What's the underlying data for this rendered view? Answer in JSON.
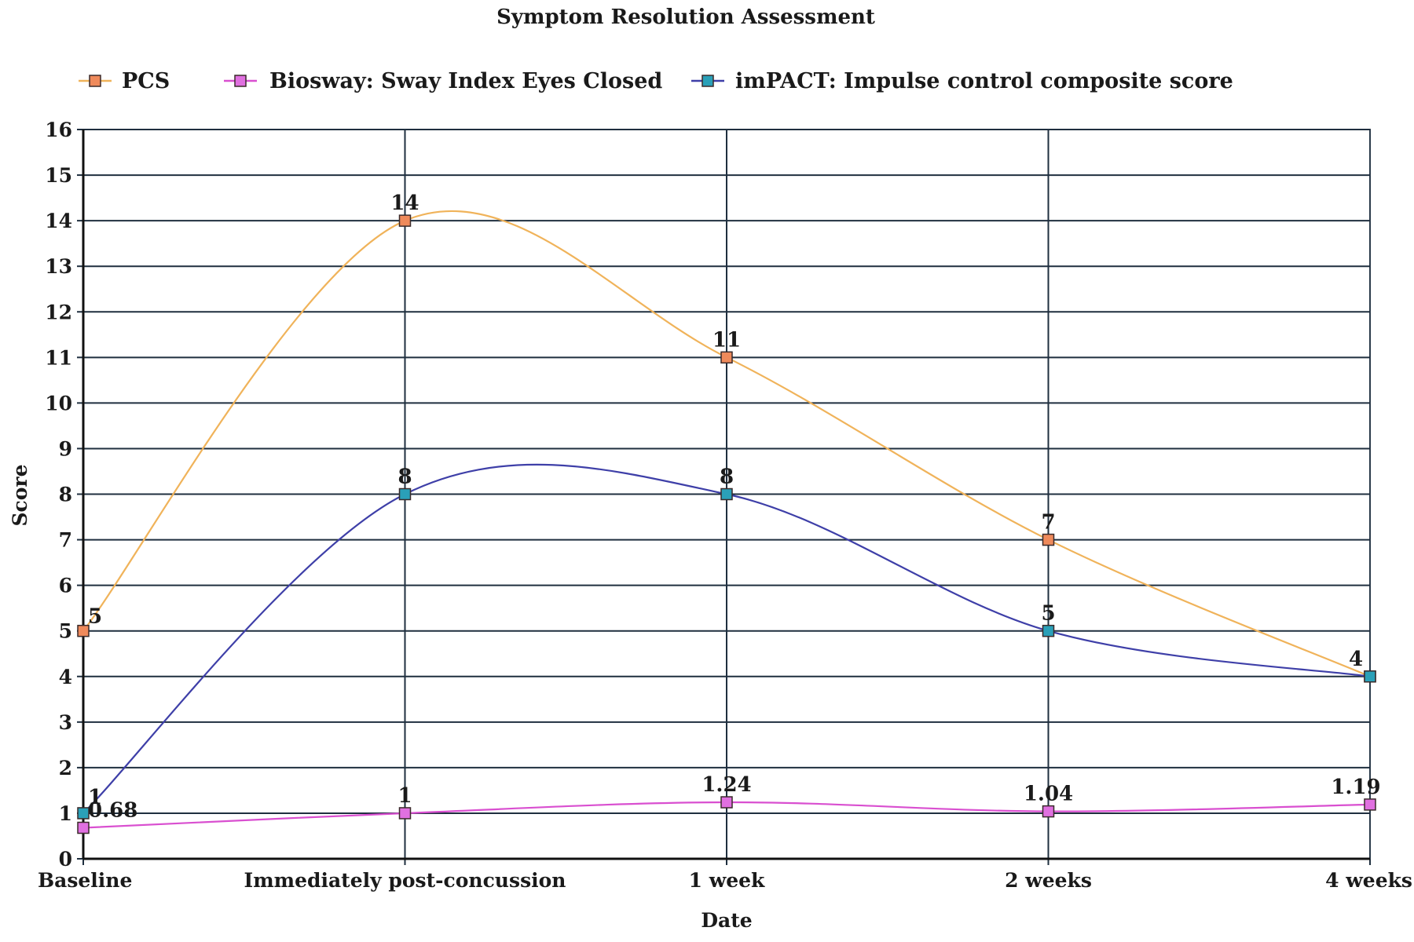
{
  "chart_data": {
    "type": "line",
    "title": "Symptom Resolution Assessment",
    "xlabel": "Date",
    "ylabel": "Score",
    "categories": [
      "Baseline",
      "Immediately post-concussion",
      "1 week",
      "2 weeks",
      "4 weeks"
    ],
    "ylim": [
      0,
      16
    ],
    "yticks": [
      0,
      1,
      2,
      3,
      4,
      5,
      6,
      7,
      8,
      9,
      10,
      11,
      12,
      13,
      14,
      15,
      16
    ],
    "grid": true,
    "smooth": true,
    "legend_position": "top",
    "series": [
      {
        "name": "PCS",
        "values": [
          5,
          14,
          11,
          7,
          4
        ],
        "labels": [
          "5",
          "14",
          "11",
          "7",
          "4"
        ],
        "line_color": "#f0b35a",
        "marker_color": "#ef8a5b"
      },
      {
        "name": "Biosway: Sway Index Eyes Closed",
        "values": [
          0.68,
          1,
          1.24,
          1.04,
          1.19
        ],
        "labels": [
          "0.68",
          "1",
          "1.24",
          "1.04",
          "1.19"
        ],
        "line_color": "#d94fd0",
        "marker_color": "#e070e0"
      },
      {
        "name": "imPACT: Impulse control composite score",
        "values": [
          1,
          8,
          8,
          5,
          4
        ],
        "labels": [
          "1",
          "8",
          "8",
          "5",
          ""
        ],
        "line_color": "#3e3fa8",
        "marker_color": "#2aa0b8"
      }
    ]
  }
}
